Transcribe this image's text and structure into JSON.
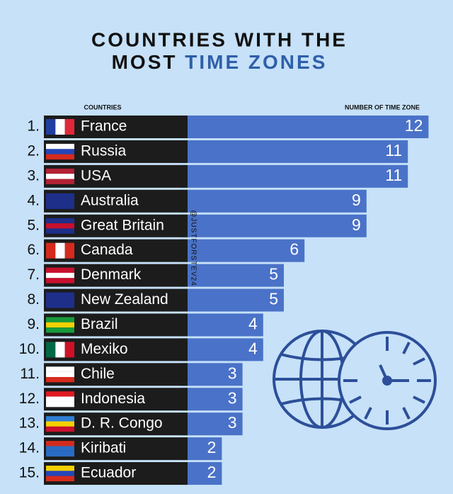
{
  "chart_data": {
    "type": "bar",
    "title_parts": [
      "COUNTRIES WITH THE",
      "MOST",
      "TIME ZONES"
    ],
    "category_header": "COUNTRIES",
    "value_header": "NUMBER OF TIME ZONE",
    "credit": "@JUSTFORSTEV24",
    "ranks": [
      "1.",
      "2.",
      "3.",
      "4.",
      "5.",
      "6.",
      "7.",
      "8.",
      "9.",
      "10.",
      "11.",
      "12.",
      "13.",
      "14.",
      "15."
    ],
    "categories": [
      "France",
      "Russia",
      "USA",
      "Australia",
      "Great Britain",
      "Canada",
      "Denmark",
      "New Zealand",
      "Brazil",
      "Mexiko",
      "Chile",
      "Indonesia",
      "D. R. Congo",
      "Kiribati",
      "Ecuador"
    ],
    "values": [
      12,
      11,
      11,
      9,
      9,
      6,
      5,
      5,
      4,
      4,
      3,
      3,
      3,
      2,
      2
    ],
    "color": "#4a72c8"
  }
}
